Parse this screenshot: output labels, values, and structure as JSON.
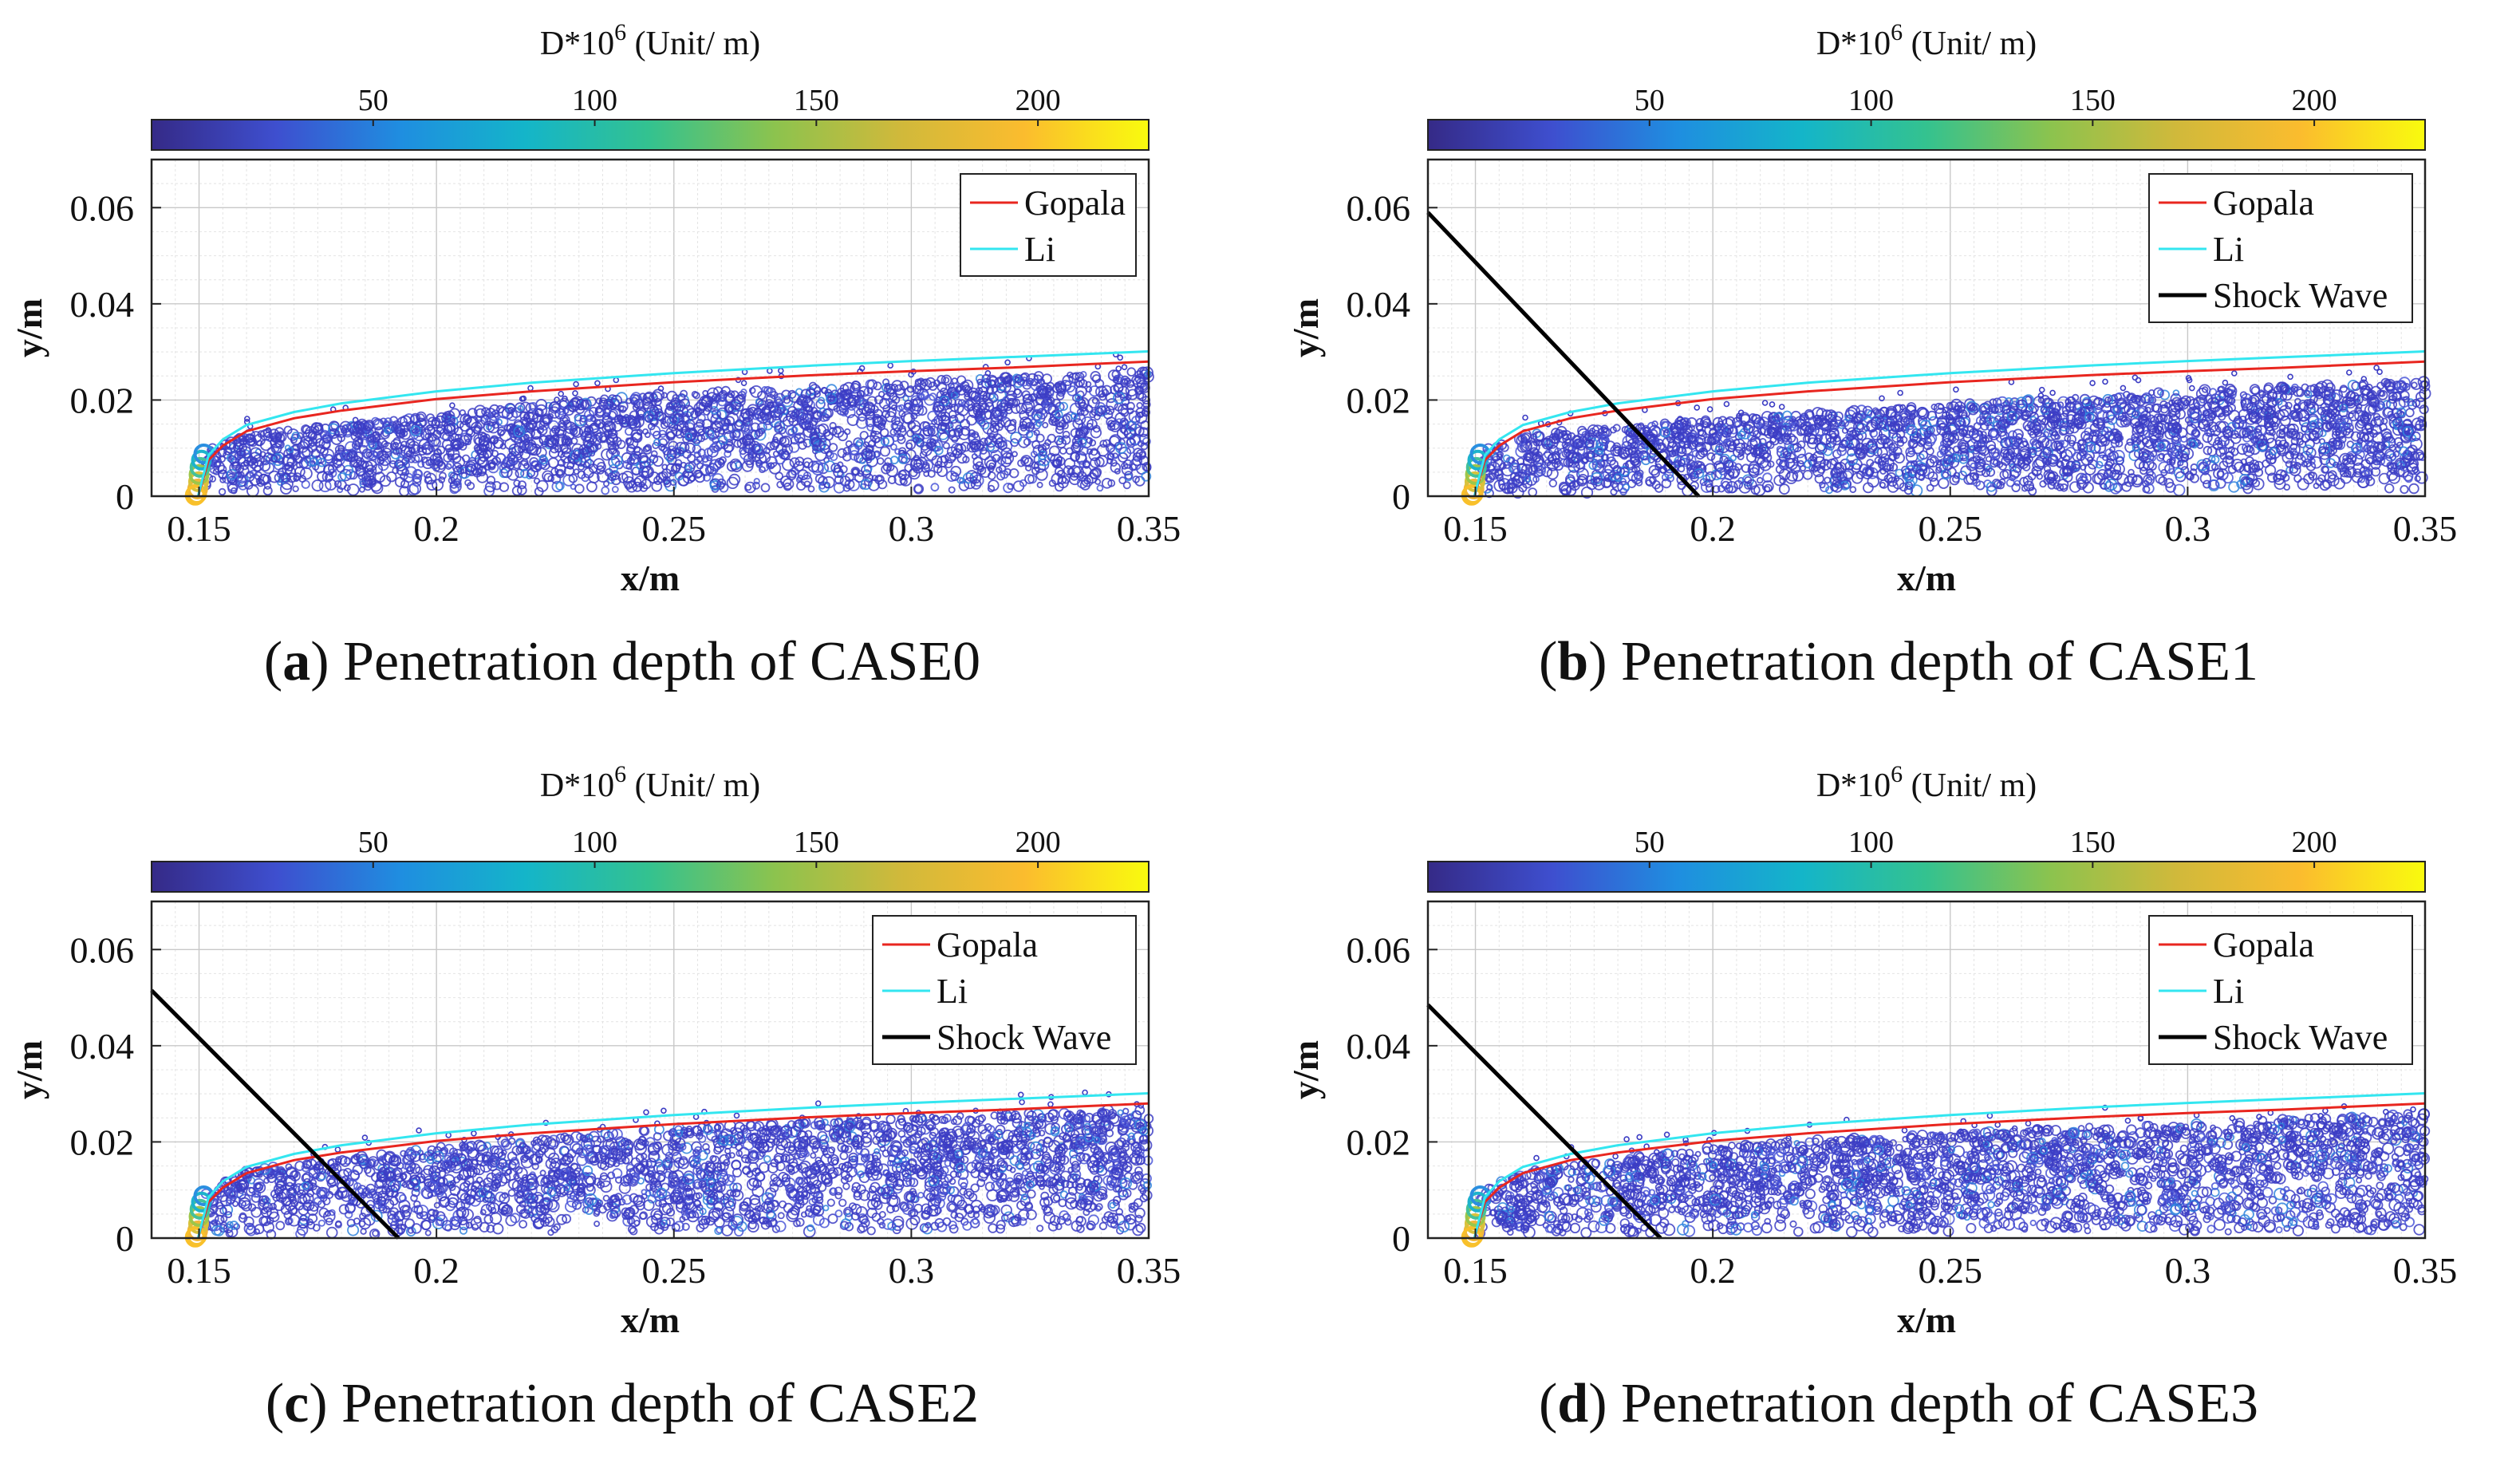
{
  "colorbar": {
    "label_prefix": "D*10",
    "label_exp": "6",
    "label_suffix": " (Unit/ m)",
    "ticks": [
      "50",
      "100",
      "150",
      "200"
    ],
    "tick_values": [
      50,
      100,
      150,
      200
    ],
    "range": [
      0,
      225
    ],
    "colors": [
      "#352a87",
      "#3e4fcf",
      "#1f8ee0",
      "#14b5c9",
      "#34c28f",
      "#8cc34e",
      "#d0b93b",
      "#fbbc2e",
      "#f9fb0e"
    ]
  },
  "chart_data": [
    {
      "id": "a",
      "type": "scatter",
      "caption_letter": "a",
      "caption_text": ") Penetration depth of CASE0",
      "xlabel": "x/m",
      "ylabel": "y/m",
      "xlim": [
        0.14,
        0.35
      ],
      "ylim": [
        0,
        0.07
      ],
      "xticks": [
        0.15,
        0.2,
        0.25,
        0.3,
        0.35
      ],
      "xtick_labels": [
        "0.15",
        "0.2",
        "0.25",
        "0.3",
        "0.35"
      ],
      "yticks": [
        0,
        0.02,
        0.04,
        0.06
      ],
      "ytick_labels": [
        "0",
        "0.02",
        "0.04",
        "0.06"
      ],
      "grid": true,
      "legend": {
        "position": "top-right",
        "entries": [
          "Gopala",
          "Li"
        ]
      },
      "series": [
        {
          "name": "Gopala",
          "color": "#e8261f",
          "x": [
            0.1498,
            0.152,
            0.155,
            0.16,
            0.17,
            0.18,
            0.2,
            0.22,
            0.25,
            0.28,
            0.3,
            0.32,
            0.35
          ],
          "y": [
            0,
            0.0075,
            0.0105,
            0.0135,
            0.0162,
            0.0178,
            0.0202,
            0.0218,
            0.0237,
            0.0252,
            0.026,
            0.0267,
            0.028
          ]
        },
        {
          "name": "Li",
          "color": "#33e6f0",
          "x": [
            0.1498,
            0.152,
            0.155,
            0.16,
            0.17,
            0.18,
            0.2,
            0.22,
            0.25,
            0.28,
            0.3,
            0.32,
            0.35
          ],
          "y": [
            0,
            0.0085,
            0.0118,
            0.0148,
            0.0175,
            0.0193,
            0.0218,
            0.0236,
            0.0256,
            0.0272,
            0.0281,
            0.0289,
            0.0301
          ]
        }
      ],
      "scatter": {
        "name": "Droplets D*10^6",
        "upper_envelope": [
          [
            0.15,
            0.009
          ],
          [
            0.16,
            0.013
          ],
          [
            0.2,
            0.017
          ],
          [
            0.25,
            0.0215
          ],
          [
            0.3,
            0.024
          ],
          [
            0.35,
            0.026
          ]
        ],
        "d_range": [
          5,
          60
        ]
      },
      "shock_wave": null
    },
    {
      "id": "b",
      "type": "scatter",
      "caption_letter": "b",
      "caption_text": ") Penetration depth of CASE1",
      "xlabel": "x/m",
      "ylabel": "y/m",
      "xlim": [
        0.14,
        0.35
      ],
      "ylim": [
        0,
        0.07
      ],
      "xticks": [
        0.15,
        0.2,
        0.25,
        0.3,
        0.35
      ],
      "xtick_labels": [
        "0.15",
        "0.2",
        "0.25",
        "0.3",
        "0.35"
      ],
      "yticks": [
        0,
        0.02,
        0.04,
        0.06
      ],
      "ytick_labels": [
        "0",
        "0.02",
        "0.04",
        "0.06"
      ],
      "grid": true,
      "legend": {
        "position": "top-right",
        "entries": [
          "Gopala",
          "Li",
          "Shock Wave"
        ]
      },
      "series": [
        {
          "name": "Gopala",
          "color": "#e8261f",
          "x": [
            0.1498,
            0.152,
            0.155,
            0.16,
            0.17,
            0.18,
            0.2,
            0.22,
            0.25,
            0.28,
            0.3,
            0.32,
            0.35
          ],
          "y": [
            0,
            0.0075,
            0.0105,
            0.0135,
            0.0162,
            0.0178,
            0.0202,
            0.0218,
            0.0237,
            0.0252,
            0.026,
            0.0267,
            0.028
          ]
        },
        {
          "name": "Li",
          "color": "#33e6f0",
          "x": [
            0.1498,
            0.152,
            0.155,
            0.16,
            0.17,
            0.18,
            0.2,
            0.22,
            0.25,
            0.28,
            0.3,
            0.32,
            0.35
          ],
          "y": [
            0,
            0.0085,
            0.0118,
            0.0148,
            0.0175,
            0.0193,
            0.0218,
            0.0236,
            0.0256,
            0.0272,
            0.0281,
            0.0289,
            0.0301
          ]
        }
      ],
      "scatter": {
        "name": "Droplets D*10^6",
        "upper_envelope": [
          [
            0.15,
            0.009
          ],
          [
            0.16,
            0.013
          ],
          [
            0.2,
            0.016
          ],
          [
            0.25,
            0.019
          ],
          [
            0.3,
            0.022
          ],
          [
            0.35,
            0.024
          ]
        ],
        "d_range": [
          5,
          60
        ]
      },
      "shock_wave": {
        "x": [
          0.14,
          0.197
        ],
        "y": [
          0.059,
          0
        ]
      }
    },
    {
      "id": "c",
      "type": "scatter",
      "caption_letter": "c",
      "caption_text": ") Penetration depth of CASE2",
      "xlabel": "x/m",
      "ylabel": "y/m",
      "xlim": [
        0.14,
        0.35
      ],
      "ylim": [
        0,
        0.07
      ],
      "xticks": [
        0.15,
        0.2,
        0.25,
        0.3,
        0.35
      ],
      "xtick_labels": [
        "0.15",
        "0.2",
        "0.25",
        "0.3",
        "0.35"
      ],
      "yticks": [
        0,
        0.02,
        0.04,
        0.06
      ],
      "ytick_labels": [
        "0",
        "0.02",
        "0.04",
        "0.06"
      ],
      "grid": true,
      "legend": {
        "position": "top-right",
        "entries": [
          "Gopala",
          "Li",
          "Shock Wave"
        ]
      },
      "series": [
        {
          "name": "Gopala",
          "color": "#e8261f",
          "x": [
            0.1498,
            0.152,
            0.155,
            0.16,
            0.17,
            0.18,
            0.2,
            0.22,
            0.25,
            0.28,
            0.3,
            0.32,
            0.35
          ],
          "y": [
            0,
            0.0075,
            0.0105,
            0.0135,
            0.0162,
            0.0178,
            0.0202,
            0.0218,
            0.0237,
            0.0252,
            0.026,
            0.0267,
            0.028
          ]
        },
        {
          "name": "Li",
          "color": "#33e6f0",
          "x": [
            0.1498,
            0.152,
            0.155,
            0.16,
            0.17,
            0.18,
            0.2,
            0.22,
            0.25,
            0.28,
            0.3,
            0.32,
            0.35
          ],
          "y": [
            0,
            0.0085,
            0.0118,
            0.0148,
            0.0175,
            0.0193,
            0.0218,
            0.0236,
            0.0256,
            0.0272,
            0.0281,
            0.0289,
            0.0301
          ]
        }
      ],
      "scatter": {
        "name": "Droplets D*10^6",
        "upper_envelope": [
          [
            0.15,
            0.009
          ],
          [
            0.16,
            0.014
          ],
          [
            0.2,
            0.019
          ],
          [
            0.25,
            0.023
          ],
          [
            0.3,
            0.025
          ],
          [
            0.35,
            0.027
          ]
        ],
        "d_range": [
          5,
          60
        ]
      },
      "shock_wave": {
        "x": [
          0.14,
          0.192
        ],
        "y": [
          0.0515,
          0
        ]
      }
    },
    {
      "id": "d",
      "type": "scatter",
      "caption_letter": "d",
      "caption_text": ") Penetration depth of CASE3",
      "xlabel": "x/m",
      "ylabel": "y/m",
      "xlim": [
        0.14,
        0.35
      ],
      "ylim": [
        0,
        0.07
      ],
      "xticks": [
        0.15,
        0.2,
        0.25,
        0.3,
        0.35
      ],
      "xtick_labels": [
        "0.15",
        "0.2",
        "0.25",
        "0.3",
        "0.35"
      ],
      "yticks": [
        0,
        0.02,
        0.04,
        0.06
      ],
      "ytick_labels": [
        "0",
        "0.02",
        "0.04",
        "0.06"
      ],
      "grid": true,
      "legend": {
        "position": "top-right",
        "entries": [
          "Gopala",
          "Li",
          "Shock Wave"
        ]
      },
      "series": [
        {
          "name": "Gopala",
          "color": "#e8261f",
          "x": [
            0.1498,
            0.152,
            0.155,
            0.16,
            0.17,
            0.18,
            0.2,
            0.22,
            0.25,
            0.28,
            0.3,
            0.32,
            0.35
          ],
          "y": [
            0,
            0.0075,
            0.0105,
            0.0135,
            0.0162,
            0.0178,
            0.0202,
            0.0218,
            0.0237,
            0.0252,
            0.026,
            0.0267,
            0.028
          ]
        },
        {
          "name": "Li",
          "color": "#33e6f0",
          "x": [
            0.1498,
            0.152,
            0.155,
            0.16,
            0.17,
            0.18,
            0.2,
            0.22,
            0.25,
            0.28,
            0.3,
            0.32,
            0.35
          ],
          "y": [
            0,
            0.0085,
            0.0118,
            0.0148,
            0.0175,
            0.0193,
            0.0218,
            0.0236,
            0.0256,
            0.0272,
            0.0281,
            0.0289,
            0.0301
          ]
        }
      ],
      "scatter": {
        "name": "Droplets D*10^6",
        "upper_envelope": [
          [
            0.15,
            0.009
          ],
          [
            0.16,
            0.014
          ],
          [
            0.2,
            0.019
          ],
          [
            0.25,
            0.022
          ],
          [
            0.3,
            0.024
          ],
          [
            0.35,
            0.026
          ]
        ],
        "d_range": [
          5,
          60
        ]
      },
      "shock_wave": {
        "x": [
          0.14,
          0.189
        ],
        "y": [
          0.0485,
          0
        ]
      }
    }
  ]
}
